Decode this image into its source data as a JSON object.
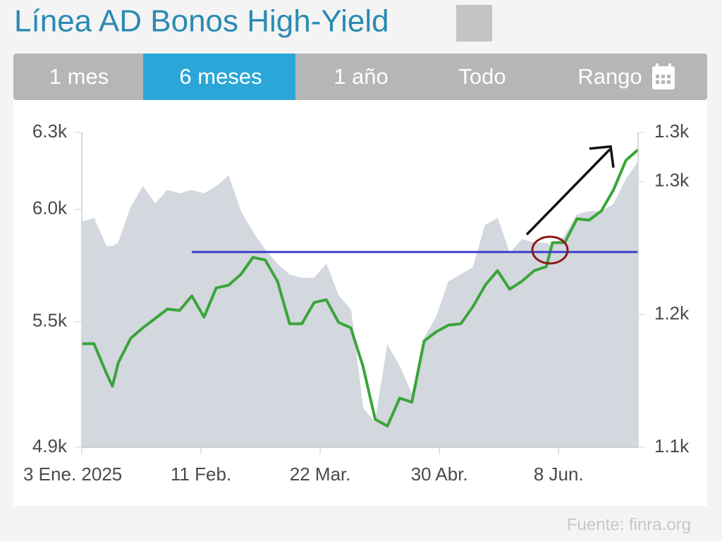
{
  "title": "Línea AD Bonos High-Yield",
  "tabs": [
    "1 mes",
    "6 meses",
    "1 año",
    "Todo",
    "Rango"
  ],
  "active_tab": 1,
  "source": "Fuente: finra.org",
  "chart_data": {
    "type": "line",
    "x": [
      0,
      4,
      8,
      10,
      12,
      16,
      20,
      24,
      28,
      32,
      36,
      40,
      44,
      48,
      52,
      56,
      60,
      64,
      68,
      72,
      76,
      80,
      84,
      88,
      92,
      96,
      100,
      104,
      108,
      112,
      116,
      120,
      124,
      128,
      132,
      136,
      140,
      144,
      148,
      152,
      154,
      158,
      162,
      166,
      170,
      174,
      178,
      182
    ],
    "xlim": [
      0,
      182
    ],
    "xticks": [
      {
        "value": 0,
        "label": "3 Ene. 2025"
      },
      {
        "value": 39,
        "label": "11 Feb."
      },
      {
        "value": 78,
        "label": "22 Mar."
      },
      {
        "value": 117,
        "label": "30 Abr."
      },
      {
        "value": 156,
        "label": "8 Jun."
      }
    ],
    "ylim": [
      4900,
      6300
    ],
    "yticks": [
      {
        "value": 4900,
        "label": "4.9k"
      },
      {
        "value": 5458,
        "label": "5.5k"
      },
      {
        "value": 5958,
        "label": "6.0k"
      },
      {
        "value": 6300,
        "label": "6.3k"
      }
    ],
    "y2lim": [
      1100,
      1337
    ],
    "y2ticks": [
      {
        "value": 1100,
        "label": "1.1k"
      },
      {
        "value": 1200,
        "label": "1.2k"
      },
      {
        "value": 1300,
        "label": "1.3k"
      },
      {
        "value": 1337,
        "label": "1.3k"
      }
    ],
    "series": [
      {
        "style": "area",
        "color": "#d3d7de",
        "axis": "y",
        "values": [
          5902,
          5918,
          5793,
          5793,
          5808,
          5965,
          6059,
          5981,
          6043,
          6028,
          6043,
          6028,
          6059,
          6106,
          5949,
          5855,
          5777,
          5714,
          5667,
          5652,
          5652,
          5714,
          5573,
          5511,
          5072,
          5010,
          5354,
          5260,
          5135,
          5385,
          5479,
          5636,
          5667,
          5699,
          5887,
          5918,
          5761,
          5824,
          5808,
          5808,
          5793,
          5840,
          5934,
          5949,
          5949,
          5981,
          6090,
          6168
        ]
      },
      {
        "style": "line",
        "color": "#3aa53a",
        "axis": "y2",
        "values": [
          1178,
          1178,
          1156,
          1146,
          1164,
          1182,
          1190,
          1197,
          1204,
          1203,
          1214,
          1198,
          1220,
          1222,
          1230,
          1243,
          1241,
          1225,
          1193,
          1193,
          1209,
          1211,
          1194,
          1190,
          1161,
          1121,
          1116,
          1137,
          1134,
          1180,
          1187,
          1192,
          1193,
          1206,
          1222,
          1233,
          1219,
          1225,
          1233,
          1236,
          1254,
          1254,
          1272,
          1271,
          1278,
          1294,
          1316,
          1324
        ]
      }
    ],
    "reference_line": {
      "value": 1247,
      "axis": "y2",
      "x": [
        36,
        182
      ],
      "color": "#3f3fd0"
    }
  }
}
